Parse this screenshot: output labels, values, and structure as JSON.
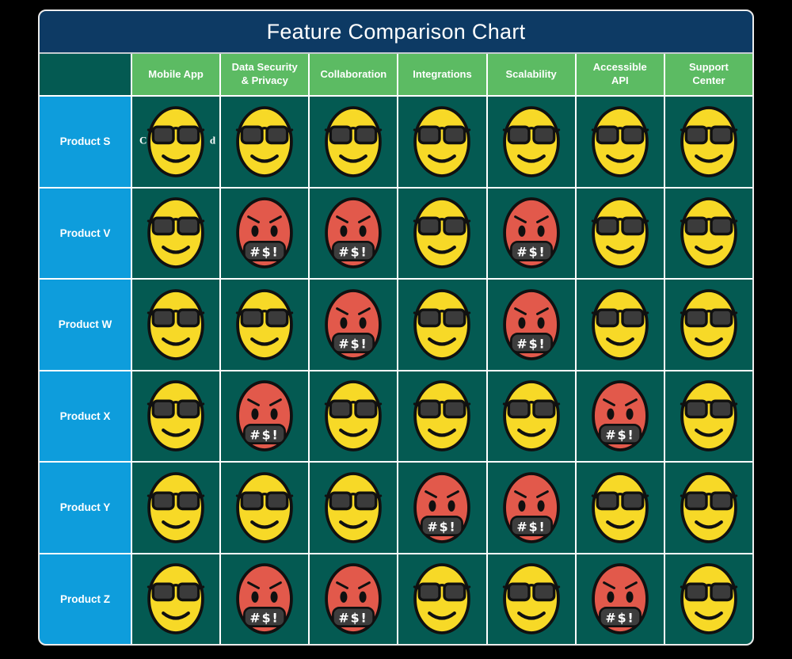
{
  "title": "Feature Comparison Chart",
  "chart_data": {
    "type": "table",
    "title": "Feature Comparison Chart",
    "columns": [
      "Mobile App",
      "Data Security & Privacy",
      "Collaboration",
      "Integrations",
      "Scalability",
      "Accessible API",
      "Support Center"
    ],
    "rows": [
      "Product S",
      "Product V",
      "Product W",
      "Product X",
      "Product Y",
      "Product Z"
    ],
    "values": [
      [
        "positive",
        "positive",
        "positive",
        "positive",
        "positive",
        "positive",
        "positive"
      ],
      [
        "positive",
        "negative",
        "negative",
        "positive",
        "negative",
        "positive",
        "positive"
      ],
      [
        "positive",
        "positive",
        "negative",
        "positive",
        "negative",
        "positive",
        "positive"
      ],
      [
        "positive",
        "negative",
        "positive",
        "positive",
        "positive",
        "negative",
        "positive"
      ],
      [
        "positive",
        "positive",
        "positive",
        "negative",
        "negative",
        "positive",
        "positive"
      ],
      [
        "positive",
        "negative",
        "negative",
        "positive",
        "positive",
        "negative",
        "positive"
      ]
    ],
    "value_legend": {
      "positive": "cool-sunglasses-emoji",
      "negative": "angry-swearing-emoji"
    },
    "legend_position": "none",
    "grid": "white 2px separators"
  },
  "emoji": {
    "angry_mouth_text": "#$!"
  },
  "obscured_text": {
    "left_fragment": "C",
    "right_fragment": "d"
  },
  "colors": {
    "page_background": "#000000",
    "title_bar": "#0D3A64",
    "header_green": "#5CBB63",
    "cell_teal": "#045A52",
    "row_label_blue": "#0E9DDC",
    "grid_line": "#FFFFFF",
    "emoji_yellow": "#F7D927",
    "emoji_red": "#E2594B",
    "sunglasses_gray": "#3B3B3B",
    "mouth_plate_gray": "#3D3D3D",
    "emoji_outline": "#101010"
  }
}
